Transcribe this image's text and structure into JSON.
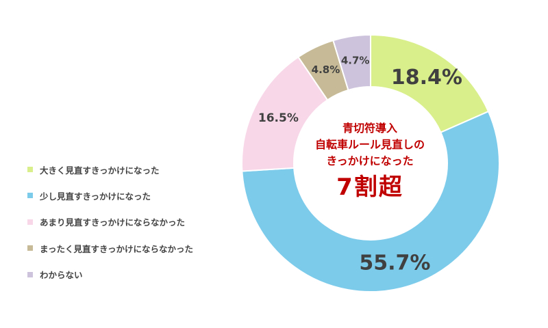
{
  "chart_data": {
    "type": "pie",
    "variant": "donut",
    "categories": [
      "大きく見直すきっかけになった",
      "少し見直すきっかけになった",
      "あまり見直すきっかけにならなかった",
      "まったく見直すきっかけにならなかった",
      "わからない"
    ],
    "values": [
      18.4,
      55.7,
      16.5,
      4.8,
      4.7
    ],
    "value_labels": [
      "18.4%",
      "55.7%",
      "16.5%",
      "4.8%",
      "4.7%"
    ],
    "colors": [
      "#d9ef8b",
      "#7dcbeb",
      "#f8d7e8",
      "#c6bb96",
      "#cdc3dd"
    ],
    "legend_position": "left",
    "center_text": {
      "lines": [
        "青切符導入",
        "自転車ルール見直しの",
        "きっかけになった"
      ],
      "highlight": "7割超",
      "color": "#c00000"
    }
  }
}
